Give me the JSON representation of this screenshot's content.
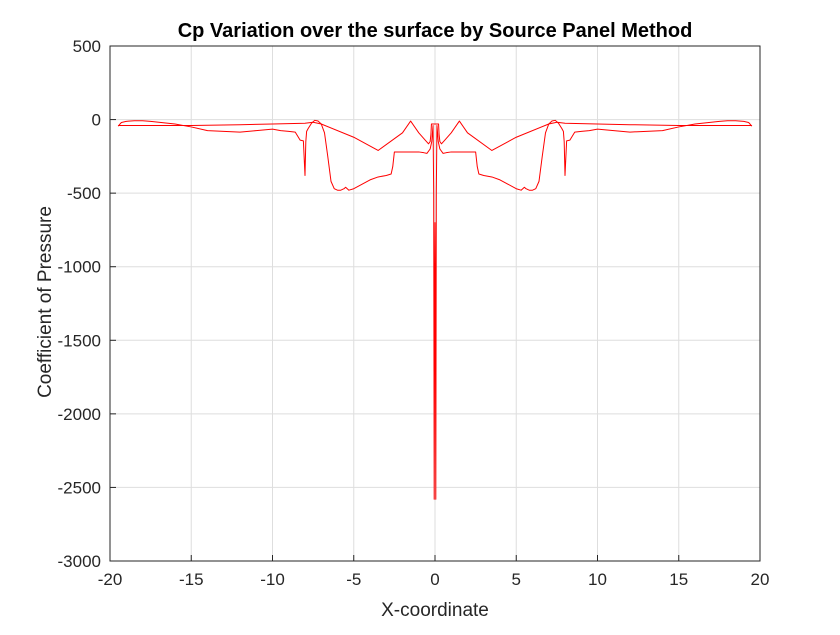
{
  "chart_data": {
    "type": "line",
    "title": "Cp Variation over the surface by Source Panel Method",
    "xlabel": "X-coordinate",
    "ylabel": "Coefficient of Pressure",
    "xlim": [
      -20,
      20
    ],
    "ylim": [
      -3000,
      500
    ],
    "xticks": [
      -20,
      -15,
      -10,
      -5,
      0,
      5,
      10,
      15,
      20
    ],
    "yticks": [
      500,
      0,
      -500,
      -1000,
      -1500,
      -2000,
      -2500,
      -3000
    ],
    "grid": true,
    "legend": "none",
    "series": [
      {
        "color": "#ff0000",
        "x": [
          -19.5,
          -19.3,
          -19.0,
          -18.5,
          -18.0,
          -17.5,
          -17.0,
          -16.0,
          -15.0,
          -14.0,
          -13.0,
          -12.0,
          -11.0,
          -10.0,
          -9.5,
          -9.0,
          -8.6,
          -8.3,
          -8.1,
          -8.0,
          -7.95,
          -7.9,
          -7.85,
          -7.8,
          -7.6,
          -7.4,
          -7.2,
          -7.0,
          -6.8,
          -6.6,
          -6.4,
          -6.2,
          -6.0,
          -5.8,
          -5.6,
          -5.5,
          -5.4,
          -5.3,
          -5.0,
          -4.5,
          -4.0,
          -3.5,
          -3.0,
          -2.7,
          -2.6,
          -2.5,
          -2.0,
          -1.6,
          -1.3,
          -1.0,
          -0.7,
          -0.5,
          -0.3,
          -0.2,
          -0.12,
          -0.08,
          -0.05,
          -0.02,
          0.0,
          0.02,
          0.05,
          0.08,
          0.12,
          0.2,
          0.3,
          0.5,
          0.7,
          1.0,
          1.3,
          1.6,
          2.0,
          2.5,
          2.6,
          2.7,
          3.0,
          3.5,
          4.0,
          4.5,
          5.0,
          5.3,
          5.4,
          5.5,
          5.6,
          5.8,
          6.0,
          6.2,
          6.4,
          6.6,
          6.8,
          7.0,
          7.2,
          7.4,
          7.6,
          7.8,
          7.85,
          7.9,
          7.95,
          8.0,
          8.1,
          8.3,
          8.6,
          9.0,
          9.5,
          10.0,
          11.0,
          12.0,
          13.0,
          14.0,
          15.0,
          16.0,
          17.0,
          17.5,
          18.0,
          18.5,
          19.0,
          19.3,
          19.5
        ],
        "y": [
          -45,
          -20,
          -12,
          -8,
          -8,
          -12,
          -18,
          -30,
          -50,
          -75,
          -80,
          -85,
          -75,
          -65,
          -75,
          -80,
          -85,
          -140,
          -145,
          -380,
          -150,
          -80,
          -70,
          -60,
          -25,
          -5,
          -10,
          -30,
          -90,
          -250,
          -420,
          -470,
          -480,
          -480,
          -470,
          -460,
          -470,
          -480,
          -470,
          -440,
          -410,
          -390,
          -380,
          -370,
          -320,
          -220,
          -220,
          -220,
          -220,
          -220,
          -225,
          -230,
          -200,
          -150,
          -40,
          -500,
          -2580,
          -1200,
          -700,
          -1200,
          -2580,
          -500,
          -40,
          -150,
          -200,
          -230,
          -225,
          -220,
          -220,
          -220,
          -220,
          -220,
          -320,
          -370,
          -380,
          -390,
          -410,
          -440,
          -470,
          -480,
          -470,
          -460,
          -470,
          -480,
          -480,
          -470,
          -420,
          -250,
          -90,
          -30,
          -10,
          -5,
          -25,
          -60,
          -70,
          -80,
          -150,
          -380,
          -145,
          -140,
          -85,
          -80,
          -75,
          -65,
          -75,
          -85,
          -80,
          -75,
          -50,
          -30,
          -18,
          -12,
          -8,
          -8,
          -12,
          -20,
          -45
        ]
      },
      {
        "color": "#ff0000",
        "x": [
          -19.5,
          -17.0,
          -15.0,
          -12.0,
          -10.0,
          -8.0,
          -7.5,
          -7.0,
          -5.0,
          -3.5,
          -2.0,
          -1.5,
          -1.0,
          -0.6,
          -0.4,
          -0.3,
          -0.25,
          -0.22,
          0.22,
          0.25,
          0.3,
          0.4,
          0.6,
          1.0,
          1.5,
          2.0,
          3.5,
          5.0,
          7.0,
          7.5,
          8.0,
          10.0,
          12.0,
          15.0,
          17.0,
          19.5
        ],
        "y": [
          -40,
          -40,
          -40,
          -35,
          -30,
          -25,
          -18,
          -30,
          -120,
          -210,
          -90,
          -10,
          -90,
          -140,
          -165,
          -150,
          -100,
          -30,
          -30,
          -100,
          -150,
          -165,
          -140,
          -90,
          -10,
          -90,
          -210,
          -120,
          -30,
          -18,
          -25,
          -30,
          -35,
          -40,
          -40,
          -40
        ]
      }
    ]
  }
}
